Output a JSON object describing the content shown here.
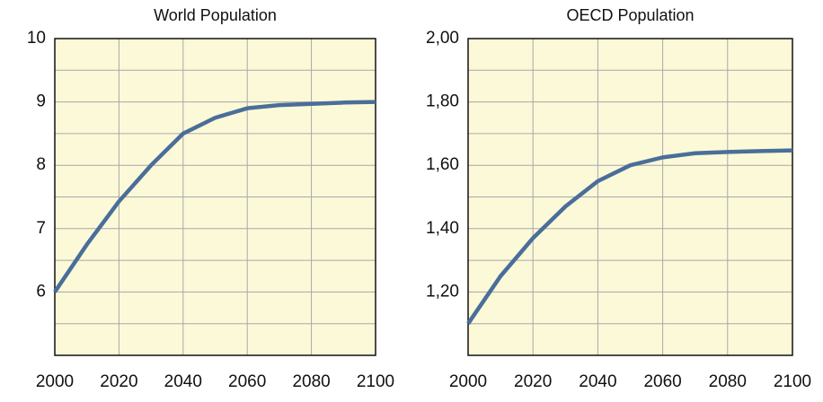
{
  "chart_data": [
    {
      "type": "line",
      "title": "World Population",
      "x": [
        2000,
        2010,
        2020,
        2030,
        2040,
        2050,
        2060,
        2070,
        2080,
        2090,
        2100
      ],
      "series": [
        {
          "name": null,
          "color": "#4a6e9a",
          "values": [
            6.0,
            6.75,
            7.43,
            8.0,
            8.5,
            8.75,
            8.9,
            8.95,
            8.97,
            8.99,
            9.0
          ]
        }
      ],
      "xlim": [
        2000,
        2100
      ],
      "xticks": [
        2000,
        2020,
        2040,
        2060,
        2080,
        2100
      ],
      "ylim": [
        5,
        10
      ],
      "yticks": [
        6,
        7,
        8,
        9,
        10
      ],
      "grid": true
    },
    {
      "type": "line",
      "title": "OECD Population",
      "x": [
        2000,
        2010,
        2020,
        2030,
        2040,
        2050,
        2060,
        2070,
        2080,
        2090,
        2100
      ],
      "series": [
        {
          "name": null,
          "color": "#4a6e9a",
          "values": [
            1.1,
            1.25,
            1.37,
            1.47,
            1.55,
            1.6,
            1.625,
            1.638,
            1.642,
            1.645,
            1.647
          ]
        }
      ],
      "xlim": [
        2000,
        2100
      ],
      "xticks": [
        2000,
        2020,
        2040,
        2060,
        2080,
        2100
      ],
      "ylim": [
        1,
        2
      ],
      "yticks": [
        {
          "value": 1.2,
          "label": "1,20"
        },
        {
          "value": 1.4,
          "label": "1,40"
        },
        {
          "value": 1.6,
          "label": "1,60"
        },
        {
          "value": 1.8,
          "label": "1,80"
        },
        {
          "value": 2,
          "label": "2,00"
        }
      ],
      "grid": true
    }
  ]
}
